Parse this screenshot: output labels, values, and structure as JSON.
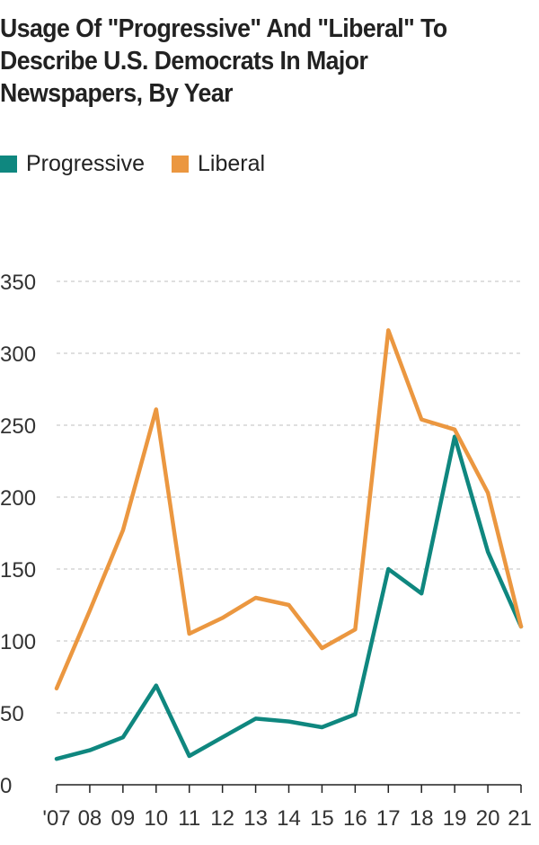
{
  "title": "Usage Of \"Progressive\" And \"Liberal\" To Describe U.S. Democrats In Major Newspapers, By Year",
  "legend": [
    {
      "name": "Progressive",
      "color": "#0f877f"
    },
    {
      "name": "Liberal",
      "color": "#eb9740"
    }
  ],
  "chart_data": {
    "type": "line",
    "title": "Usage Of \"Progressive\" And \"Liberal\" To Describe U.S. Democrats In Major Newspapers, By Year",
    "x": [
      "'07",
      "08",
      "09",
      "10",
      "11",
      "12",
      "13",
      "14",
      "15",
      "16",
      "17",
      "18",
      "19",
      "20",
      "21"
    ],
    "series": [
      {
        "name": "Progressive",
        "color": "#0f877f",
        "values": [
          18,
          24,
          33,
          69,
          20,
          33,
          46,
          44,
          40,
          49,
          150,
          133,
          242,
          162,
          110
        ]
      },
      {
        "name": "Liberal",
        "color": "#eb9740",
        "values": [
          67,
          121,
          177,
          261,
          105,
          116,
          130,
          125,
          95,
          108,
          316,
          254,
          247,
          203,
          110
        ]
      }
    ],
    "ylim": [
      0,
      350
    ],
    "yticks": [
      "0",
      "50",
      "100",
      "150",
      "200",
      "250",
      "300",
      "350"
    ],
    "grid": true,
    "legend_position": "top-left"
  }
}
